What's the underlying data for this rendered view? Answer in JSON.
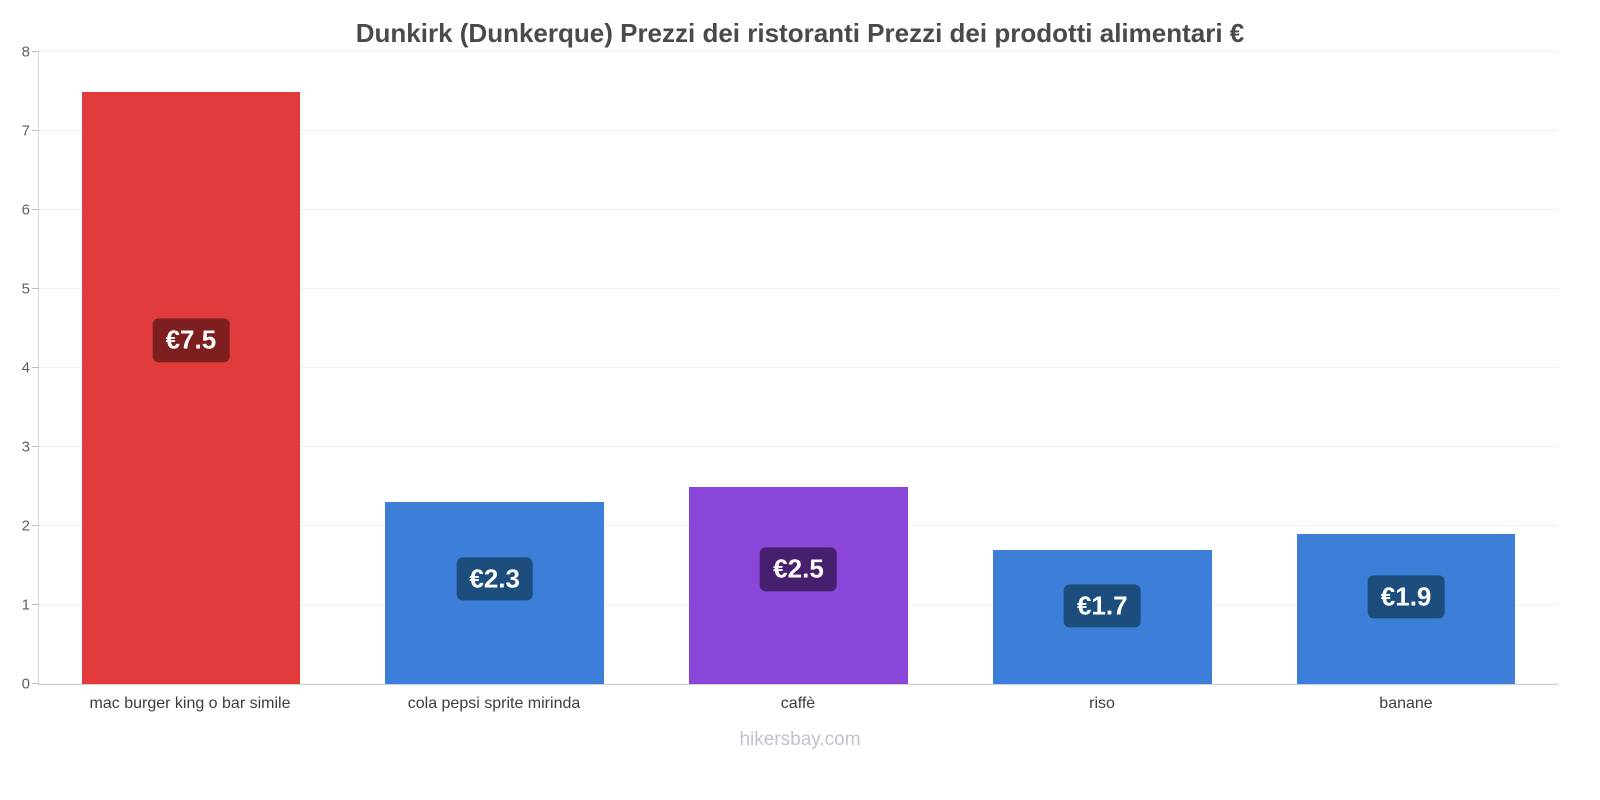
{
  "chart_data": {
    "type": "bar",
    "title": "Dunkirk (Dunkerque) Prezzi dei ristoranti Prezzi dei prodotti alimentari €",
    "categories": [
      "mac burger king o bar simile",
      "cola pepsi sprite mirinda",
      "caffè",
      "riso",
      "banane"
    ],
    "values": [
      7.5,
      2.3,
      2.5,
      1.7,
      1.9
    ],
    "value_labels": [
      "€7.5",
      "€2.3",
      "€2.5",
      "€1.7",
      "€1.9"
    ],
    "bar_colors": [
      "#e23b3b",
      "#3d7ed8",
      "#8a46d8",
      "#3d7ed8",
      "#3d7ed8"
    ],
    "badge_colors": [
      "#7d1f1f",
      "#1d4d7c",
      "#46206e",
      "#1d4d7c",
      "#1d4d7c"
    ],
    "xlabel": "",
    "ylabel": "",
    "ylim": [
      0,
      8
    ],
    "yticks": [
      0,
      1,
      2,
      3,
      4,
      5,
      6,
      7,
      8
    ],
    "grid": true,
    "legend": false
  },
  "footer": {
    "label": "hikersbay.com"
  }
}
